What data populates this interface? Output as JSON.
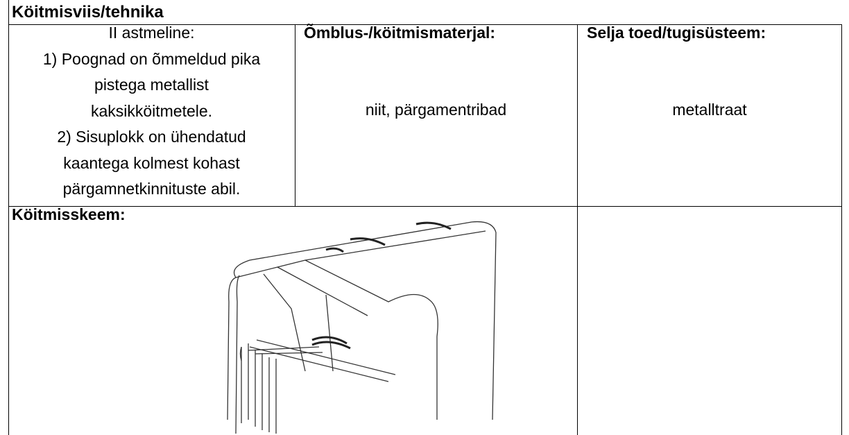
{
  "header": {
    "title": "Köitmisviis/tehnika"
  },
  "technique": {
    "lines": [
      "II astmeline:",
      "1) Poognad on õmmeldud pika",
      "pistega metallist",
      "kaksikköitmetele.",
      "2) Sisuplokk on ühendatud",
      "kaantega kolmest kohast",
      "pärgamnetkinnituste abil."
    ]
  },
  "material": {
    "label": "Õmblus-/köitmismaterjal:",
    "value": "niit, pärgamentribad"
  },
  "support": {
    "label": "Selja toed/tugisüsteem:",
    "value": "metalltraat"
  },
  "diagram": {
    "label": "Köitmisskeem:"
  }
}
